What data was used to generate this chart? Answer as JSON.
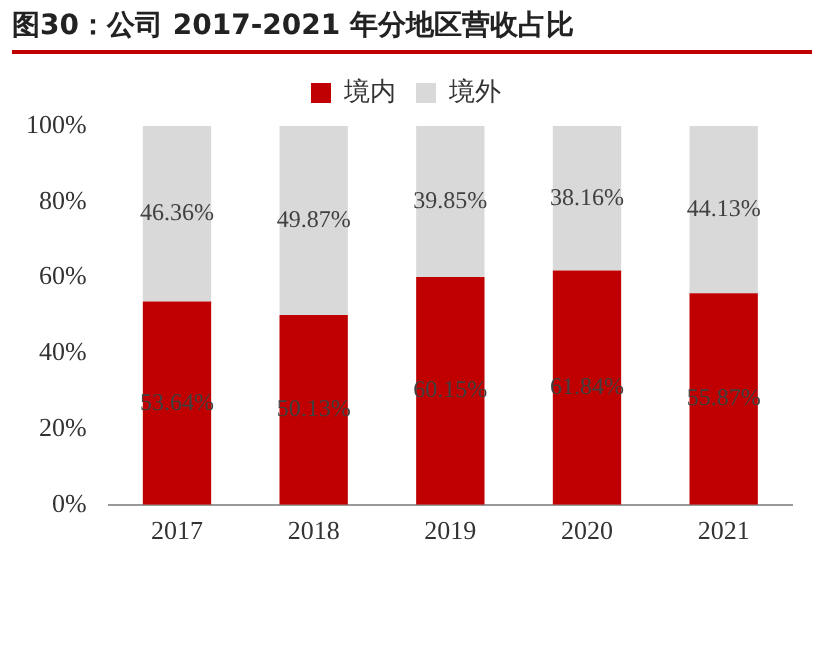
{
  "chart_data": {
    "type": "bar",
    "title": "图30：公司 2017-2021 年分地区营收占比",
    "categories": [
      "2017",
      "2018",
      "2019",
      "2020",
      "2021"
    ],
    "stacked": true,
    "series": [
      {
        "name": "境内",
        "color": "#c00000",
        "values": [
          53.64,
          50.13,
          60.15,
          61.84,
          55.87
        ],
        "value_labels": [
          "53.64%",
          "50.13%",
          "60.15%",
          "61.84%",
          "55.87%"
        ]
      },
      {
        "name": "境外",
        "color": "#d9d9d9",
        "values": [
          46.36,
          49.87,
          39.85,
          38.16,
          44.13
        ],
        "value_labels": [
          "46.36%",
          "49.87%",
          "39.85%",
          "38.16%",
          "44.13%"
        ]
      }
    ],
    "ylim": [
      0,
      100
    ],
    "yticks": [
      {
        "value": 0,
        "label": "0%"
      },
      {
        "value": 20,
        "label": "20%"
      },
      {
        "value": 40,
        "label": "40%"
      },
      {
        "value": 60,
        "label": "60%"
      },
      {
        "value": 80,
        "label": "80%"
      },
      {
        "value": 100,
        "label": "100%"
      }
    ],
    "grid": false,
    "legend": "top"
  }
}
